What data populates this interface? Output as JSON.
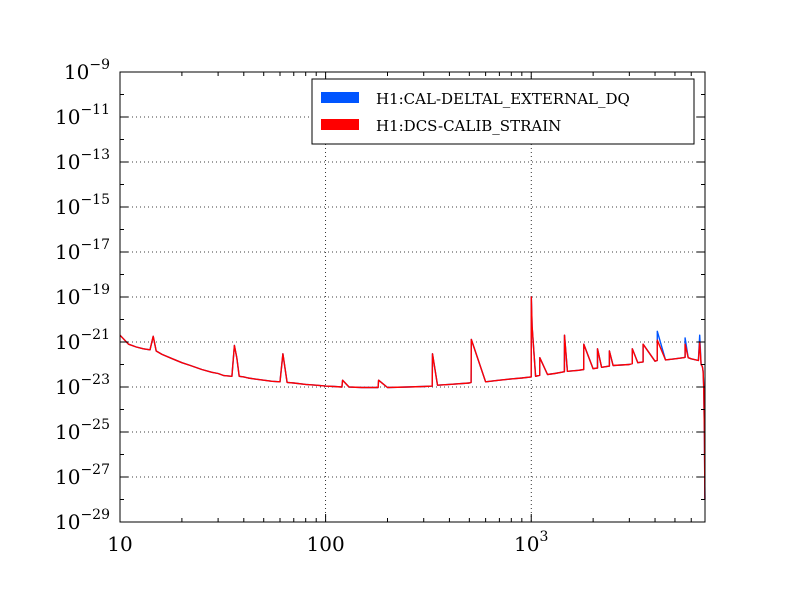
{
  "chart_data": {
    "type": "line",
    "title": "",
    "xlabel": "",
    "ylabel": "",
    "x_scale": "log",
    "y_scale": "log",
    "xlim": [
      10,
      7000
    ],
    "ylim": [
      1e-29,
      1e-09
    ],
    "grid": true,
    "legend_position": "top-right",
    "x_ticks": [
      {
        "value": 10,
        "label": "10"
      },
      {
        "value": 100,
        "label": "100"
      },
      {
        "value": 1000,
        "label": "10",
        "exponent": "3"
      }
    ],
    "y_ticks": [
      {
        "value": 1e-09,
        "label": "10",
        "exponent": "−9"
      },
      {
        "value": 1e-11,
        "label": "10",
        "exponent": "−11"
      },
      {
        "value": 1e-13,
        "label": "10",
        "exponent": "−13"
      },
      {
        "value": 1e-15,
        "label": "10",
        "exponent": "−15"
      },
      {
        "value": 1e-17,
        "label": "10",
        "exponent": "−17"
      },
      {
        "value": 1e-19,
        "label": "10",
        "exponent": "−19"
      },
      {
        "value": 1e-21,
        "label": "10",
        "exponent": "−21"
      },
      {
        "value": 1e-23,
        "label": "10",
        "exponent": "−23"
      },
      {
        "value": 1e-25,
        "label": "10",
        "exponent": "−25"
      },
      {
        "value": 1e-27,
        "label": "10",
        "exponent": "−27"
      },
      {
        "value": 1e-29,
        "label": "10",
        "exponent": "−29"
      }
    ],
    "series": [
      {
        "name": "H1:CAL-DELTAL_EXTERNAL_DQ",
        "color": "#0055ff",
        "x": [
          10,
          11,
          12,
          13,
          14,
          14.5,
          15,
          16,
          18,
          20,
          22,
          25,
          28,
          30,
          32,
          35,
          36,
          37,
          38,
          40,
          42,
          45,
          50,
          55,
          60,
          62,
          65,
          70,
          80,
          90,
          100,
          110,
          120,
          121,
          130,
          150,
          170,
          180,
          181,
          200,
          250,
          300,
          330,
          331,
          350,
          400,
          500,
          510,
          511,
          600,
          700,
          800,
          900,
          1000,
          1001,
          1010,
          1050,
          1100,
          1101,
          1200,
          1300,
          1400,
          1450,
          1451,
          1500,
          1700,
          1800,
          1801,
          2000,
          2100,
          2101,
          2200,
          2300,
          2400,
          2401,
          2500,
          3000,
          3100,
          3101,
          3300,
          3500,
          3501,
          4000,
          4100,
          4101,
          4500,
          5000,
          5500,
          5600,
          5601,
          5800,
          6000,
          6500,
          6600,
          6700,
          6800,
          6850,
          6900,
          6950,
          6990
        ],
        "y": [
          2e-21,
          8e-22,
          6e-22,
          5e-22,
          4.5e-22,
          1.8e-21,
          4e-22,
          2.8e-22,
          1.8e-22,
          1.2e-22,
          9e-23,
          6e-23,
          4.5e-23,
          4e-23,
          3.2e-23,
          3e-23,
          7e-22,
          2e-22,
          3e-23,
          2.8e-23,
          2.5e-23,
          2.3e-23,
          2e-23,
          1.8e-23,
          1.7e-23,
          3e-22,
          1.6e-23,
          1.5e-23,
          1.3e-23,
          1.2e-23,
          1.1e-23,
          1.05e-23,
          1e-23,
          2e-23,
          1e-23,
          9.5e-24,
          9.5e-24,
          9.5e-24,
          2e-23,
          9.5e-24,
          1e-23,
          1.05e-23,
          1.1e-23,
          3e-22,
          1.2e-23,
          1.3e-23,
          1.5e-23,
          1.6e-23,
          1.3e-21,
          1.7e-23,
          2e-23,
          2.3e-23,
          2.5e-23,
          2.8e-23,
          1e-19,
          5e-21,
          3e-23,
          3.3e-23,
          2e-22,
          3.6e-23,
          4e-23,
          4.5e-23,
          4.8e-23,
          2e-21,
          5e-23,
          5.5e-23,
          6e-23,
          8e-22,
          6.5e-23,
          7e-23,
          5e-22,
          7.5e-23,
          8e-23,
          8.5e-23,
          4e-22,
          9e-23,
          1e-22,
          1.1e-22,
          5e-22,
          1.2e-22,
          1.3e-22,
          8e-22,
          1.4e-22,
          1.5e-22,
          3e-21,
          1.6e-22,
          1.8e-22,
          2e-22,
          2.1e-22,
          1.5e-21,
          2e-22,
          1.8e-22,
          1.5e-22,
          2e-21,
          1e-22,
          8e-23,
          5e-23,
          1e-23,
          1e-25,
          1e-28
        ]
      },
      {
        "name": "H1:DCS-CALIB_STRAIN",
        "color": "#ff0000",
        "x": [
          10,
          11,
          12,
          13,
          14,
          14.5,
          15,
          16,
          18,
          20,
          22,
          25,
          28,
          30,
          32,
          35,
          36,
          37,
          38,
          40,
          42,
          45,
          50,
          55,
          60,
          62,
          65,
          70,
          80,
          90,
          100,
          110,
          120,
          121,
          130,
          150,
          170,
          180,
          181,
          200,
          250,
          300,
          330,
          331,
          350,
          400,
          500,
          510,
          511,
          600,
          700,
          800,
          900,
          1000,
          1001,
          1010,
          1050,
          1100,
          1101,
          1200,
          1300,
          1400,
          1450,
          1451,
          1500,
          1700,
          1800,
          1801,
          2000,
          2100,
          2101,
          2200,
          2300,
          2400,
          2401,
          2500,
          3000,
          3100,
          3101,
          3300,
          3500,
          3501,
          4000,
          4100,
          4101,
          4500,
          5000,
          5500,
          5600,
          5601,
          5800,
          6000,
          6500,
          6600,
          6700,
          6800,
          6850,
          6900,
          6950,
          6990
        ],
        "y": [
          2e-21,
          8e-22,
          6e-22,
          5e-22,
          4.5e-22,
          1.8e-21,
          4e-22,
          2.8e-22,
          1.8e-22,
          1.2e-22,
          9e-23,
          6e-23,
          4.5e-23,
          4e-23,
          3.2e-23,
          3e-23,
          7e-22,
          2e-22,
          3e-23,
          2.8e-23,
          2.5e-23,
          2.3e-23,
          2e-23,
          1.8e-23,
          1.7e-23,
          3e-22,
          1.6e-23,
          1.5e-23,
          1.3e-23,
          1.2e-23,
          1.1e-23,
          1.05e-23,
          1e-23,
          2e-23,
          1e-23,
          9.5e-24,
          9.5e-24,
          9.5e-24,
          2e-23,
          9.5e-24,
          1e-23,
          1.05e-23,
          1.1e-23,
          3e-22,
          1.2e-23,
          1.3e-23,
          1.5e-23,
          1.6e-23,
          1.3e-21,
          1.7e-23,
          2e-23,
          2.3e-23,
          2.5e-23,
          2.8e-23,
          1e-19,
          5e-21,
          3e-23,
          3.3e-23,
          2e-22,
          3.6e-23,
          4e-23,
          4.5e-23,
          4.8e-23,
          2e-21,
          5e-23,
          5.5e-23,
          6e-23,
          8e-22,
          6.5e-23,
          7e-23,
          5e-22,
          7.5e-23,
          8e-23,
          8.5e-23,
          4e-22,
          9e-23,
          1e-22,
          1.1e-22,
          5e-22,
          1.2e-22,
          1.3e-22,
          8e-22,
          1.4e-22,
          1.5e-22,
          1.2e-21,
          1.6e-22,
          1.8e-22,
          2e-22,
          2.1e-22,
          8e-22,
          2e-22,
          1.8e-22,
          1.5e-22,
          1e-21,
          1e-22,
          8e-23,
          5e-23,
          1e-23,
          1e-25,
          1e-28
        ]
      }
    ]
  }
}
